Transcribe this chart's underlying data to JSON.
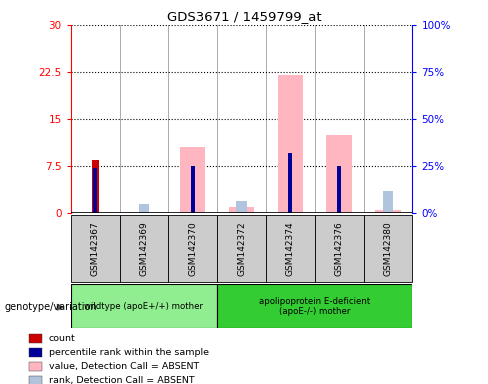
{
  "title": "GDS3671 / 1459799_at",
  "samples": [
    "GSM142367",
    "GSM142369",
    "GSM142370",
    "GSM142372",
    "GSM142374",
    "GSM142376",
    "GSM142380"
  ],
  "group1_label": "wildtype (apoE+/+) mother",
  "group2_label": "apolipoprotein E-deficient\n(apoE-/-) mother",
  "group1_color": "#90ee90",
  "group2_color": "#33cc33",
  "genotype_label": "genotype/variation",
  "count_bars": [
    8.5,
    0,
    0,
    0,
    0,
    0,
    0
  ],
  "percentile_bars_pct": [
    24.0,
    0,
    25.0,
    0,
    32.0,
    25.0,
    0
  ],
  "absent_value_bars": [
    0,
    0,
    10.5,
    1.0,
    22.0,
    12.5,
    0.5
  ],
  "absent_rank_bars_pct": [
    0,
    5.0,
    0,
    6.5,
    0,
    0,
    11.5
  ],
  "ylim_left": [
    0,
    30
  ],
  "ylim_right": [
    0,
    100
  ],
  "yticks_left": [
    0,
    7.5,
    15,
    22.5,
    30
  ],
  "ytick_labels_left": [
    "0",
    "7.5",
    "15",
    "22.5",
    "30"
  ],
  "yticks_right": [
    0,
    25,
    50,
    75,
    100
  ],
  "ytick_labels_right": [
    "0%",
    "25%",
    "50%",
    "75%",
    "100%"
  ],
  "count_color": "#cc0000",
  "percentile_color": "#000099",
  "absent_value_color": "#ffb6c1",
  "absent_rank_color": "#b0c4de",
  "sample_bg_color": "#cccccc",
  "legend_items": [
    {
      "color": "#cc0000",
      "label": "count"
    },
    {
      "color": "#000099",
      "label": "percentile rank within the sample"
    },
    {
      "color": "#ffb6c1",
      "label": "value, Detection Call = ABSENT"
    },
    {
      "color": "#b0c4de",
      "label": "rank, Detection Call = ABSENT"
    }
  ]
}
